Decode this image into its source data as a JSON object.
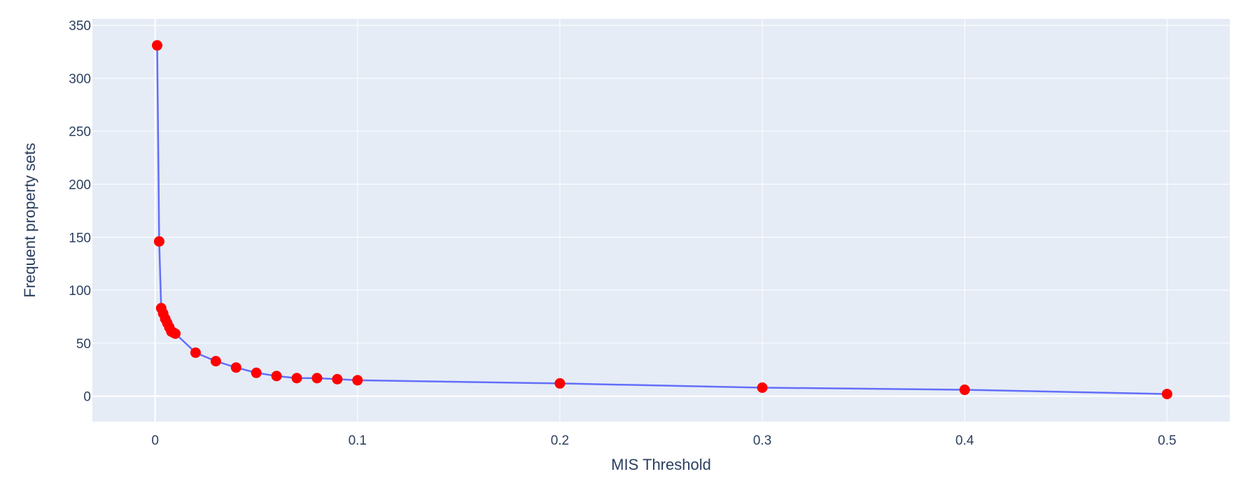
{
  "chart_data": {
    "type": "line",
    "title": "",
    "xlabel": "MIS Threshold",
    "ylabel": "Frequent property sets",
    "xlim": [
      -0.031,
      0.531
    ],
    "ylim": [
      -24,
      356
    ],
    "x_ticks": [
      0,
      0.1,
      0.2,
      0.3,
      0.4,
      0.5
    ],
    "x_tick_labels": [
      "0",
      "0.1",
      "0.2",
      "0.3",
      "0.4",
      "0.5"
    ],
    "y_ticks": [
      0,
      50,
      100,
      150,
      200,
      250,
      300,
      350
    ],
    "y_tick_labels": [
      "0",
      "50",
      "100",
      "150",
      "200",
      "250",
      "300",
      "350"
    ],
    "grid": true,
    "legend": "none",
    "colors": {
      "plot_background": "#e5ecf6",
      "grid": "#ffffff",
      "line": "#636efa",
      "marker": "#ff0000",
      "text": "#2a3f5f"
    },
    "series": [
      {
        "x": [
          0.001,
          0.002,
          0.003,
          0.004,
          0.005,
          0.006,
          0.007,
          0.008,
          0.009,
          0.01,
          0.02,
          0.03,
          0.04,
          0.05,
          0.06,
          0.07,
          0.08,
          0.09,
          0.1,
          0.2,
          0.3,
          0.4,
          0.5
        ],
        "y": [
          331,
          146,
          83,
          78,
          73,
          69,
          65,
          61,
          60,
          59,
          41,
          33,
          27,
          22,
          19,
          17,
          17,
          16,
          15,
          12,
          8,
          6,
          2
        ]
      }
    ]
  }
}
